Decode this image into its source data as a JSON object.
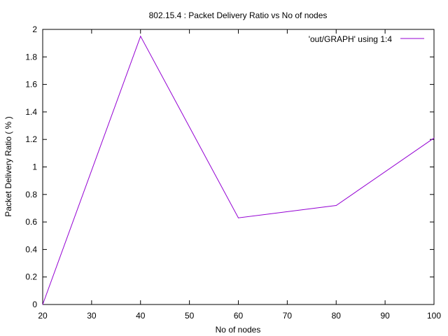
{
  "chart_data": {
    "type": "line",
    "title": "802.15.4 : Packet Delivery Ratio vs No of nodes",
    "xlabel": "No of nodes",
    "ylabel": "Packet Delivery Ratio ( % )",
    "xlim": [
      20,
      100
    ],
    "ylim": [
      0,
      2
    ],
    "xticks": [
      20,
      30,
      40,
      50,
      60,
      70,
      80,
      90,
      100
    ],
    "yticks": [
      0,
      0.2,
      0.4,
      0.6,
      0.8,
      1,
      1.2,
      1.4,
      1.6,
      1.8,
      2
    ],
    "grid": false,
    "legend_position": "top-right",
    "series": [
      {
        "name": "'out/GRAPH' using 1:4",
        "color": "#9400d3",
        "x": [
          20,
          40,
          60,
          80,
          100
        ],
        "y": [
          0,
          1.95,
          0.63,
          0.72,
          1.21
        ]
      }
    ]
  }
}
